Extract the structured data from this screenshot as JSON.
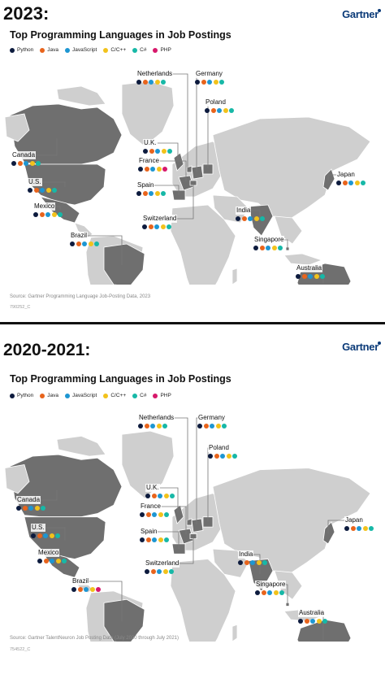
{
  "colors": {
    "Python": "#0d1b3e",
    "Java": "#e8641c",
    "JavaScript": "#1d96d2",
    "C/C++": "#f2c21b",
    "C#": "#17b8a7",
    "PHP": "#d7186b"
  },
  "panels": [
    {
      "heading": "2023:",
      "brand": "Gartner",
      "title": "Top Programming Languages in Job Postings",
      "legend": [
        "Python",
        "Java",
        "JavaScript",
        "C/C++",
        "C#",
        "PHP"
      ],
      "source": "Source: Gartner Programming Language Job-Posting Data, 2023",
      "code": "790252_C",
      "countries": [
        {
          "name": "Netherlands",
          "langs": [
            "Python",
            "Java",
            "JavaScript",
            "C/C++",
            "C#"
          ]
        },
        {
          "name": "Germany",
          "langs": [
            "Python",
            "Java",
            "JavaScript",
            "C/C++",
            "C#"
          ]
        },
        {
          "name": "Poland",
          "langs": [
            "Python",
            "Java",
            "JavaScript",
            "C/C++",
            "C#"
          ]
        },
        {
          "name": "U.K.",
          "langs": [
            "Python",
            "Java",
            "JavaScript",
            "C/C++",
            "C#"
          ]
        },
        {
          "name": "France",
          "langs": [
            "Python",
            "Java",
            "JavaScript",
            "C/C++",
            "PHP"
          ]
        },
        {
          "name": "Spain",
          "langs": [
            "Python",
            "Java",
            "JavaScript",
            "C/C++",
            "C#"
          ]
        },
        {
          "name": "Switzerland",
          "langs": [
            "Python",
            "Java",
            "JavaScript",
            "C/C++",
            "C#"
          ]
        },
        {
          "name": "Canada",
          "langs": [
            "Python",
            "Java",
            "JavaScript",
            "C/C++",
            "C#"
          ]
        },
        {
          "name": "U.S.",
          "langs": [
            "Python",
            "Java",
            "JavaScript",
            "C/C++",
            "C#"
          ]
        },
        {
          "name": "Mexico",
          "langs": [
            "Python",
            "Java",
            "JavaScript",
            "C/C++",
            "C#"
          ]
        },
        {
          "name": "Brazil",
          "langs": [
            "Python",
            "Java",
            "JavaScript",
            "C/C++",
            "C#"
          ]
        },
        {
          "name": "India",
          "langs": [
            "Python",
            "Java",
            "JavaScript",
            "C/C++",
            "C#"
          ]
        },
        {
          "name": "Japan",
          "langs": [
            "Python",
            "Java",
            "JavaScript",
            "C/C++",
            "C#"
          ]
        },
        {
          "name": "Singapore",
          "langs": [
            "Python",
            "Java",
            "JavaScript",
            "C/C++",
            "C#"
          ]
        },
        {
          "name": "Australia",
          "langs": [
            "Python",
            "Java",
            "JavaScript",
            "C/C++",
            "C#"
          ]
        }
      ]
    },
    {
      "heading": "2020-2021:",
      "brand": "Gartner",
      "title": "Top Programming Languages in Job Postings",
      "legend": [
        "Python",
        "Java",
        "JavaScript",
        "C/C++",
        "C#",
        "PHP"
      ],
      "source": "Source: Gartner TalentNeuron Job Posting Data (July 2020 through July 2021)",
      "code": "754522_C",
      "countries": [
        {
          "name": "Netherlands",
          "langs": [
            "Python",
            "Java",
            "JavaScript",
            "C/C++",
            "C#"
          ]
        },
        {
          "name": "Germany",
          "langs": [
            "Python",
            "Java",
            "JavaScript",
            "C/C++",
            "C#"
          ]
        },
        {
          "name": "Poland",
          "langs": [
            "Python",
            "Java",
            "JavaScript",
            "C/C++",
            "C#"
          ]
        },
        {
          "name": "U.K.",
          "langs": [
            "Python",
            "Java",
            "JavaScript",
            "C/C++",
            "C#"
          ]
        },
        {
          "name": "France",
          "langs": [
            "Python",
            "Java",
            "JavaScript",
            "C/C++",
            "C#"
          ]
        },
        {
          "name": "Spain",
          "langs": [
            "Python",
            "Java",
            "JavaScript",
            "C/C++",
            "C#"
          ]
        },
        {
          "name": "Switzerland",
          "langs": [
            "Python",
            "Java",
            "JavaScript",
            "C/C++",
            "C#"
          ]
        },
        {
          "name": "Canada",
          "langs": [
            "Python",
            "Java",
            "JavaScript",
            "C/C++",
            "C#"
          ]
        },
        {
          "name": "U.S.",
          "langs": [
            "Python",
            "Java",
            "JavaScript",
            "C/C++",
            "C#"
          ]
        },
        {
          "name": "Mexico",
          "langs": [
            "Python",
            "Java",
            "JavaScript",
            "C/C++",
            "C#"
          ]
        },
        {
          "name": "Brazil",
          "langs": [
            "Python",
            "Java",
            "JavaScript",
            "C/C++",
            "PHP"
          ]
        },
        {
          "name": "India",
          "langs": [
            "Python",
            "Java",
            "JavaScript",
            "C/C++",
            "C#"
          ]
        },
        {
          "name": "Japan",
          "langs": [
            "Python",
            "Java",
            "JavaScript",
            "C/C++",
            "C#"
          ]
        },
        {
          "name": "Singapore",
          "langs": [
            "Python",
            "Java",
            "JavaScript",
            "C/C++",
            "C#"
          ]
        },
        {
          "name": "Australia",
          "langs": [
            "Python",
            "Java",
            "JavaScript",
            "C/C++",
            "C#"
          ]
        }
      ]
    }
  ]
}
